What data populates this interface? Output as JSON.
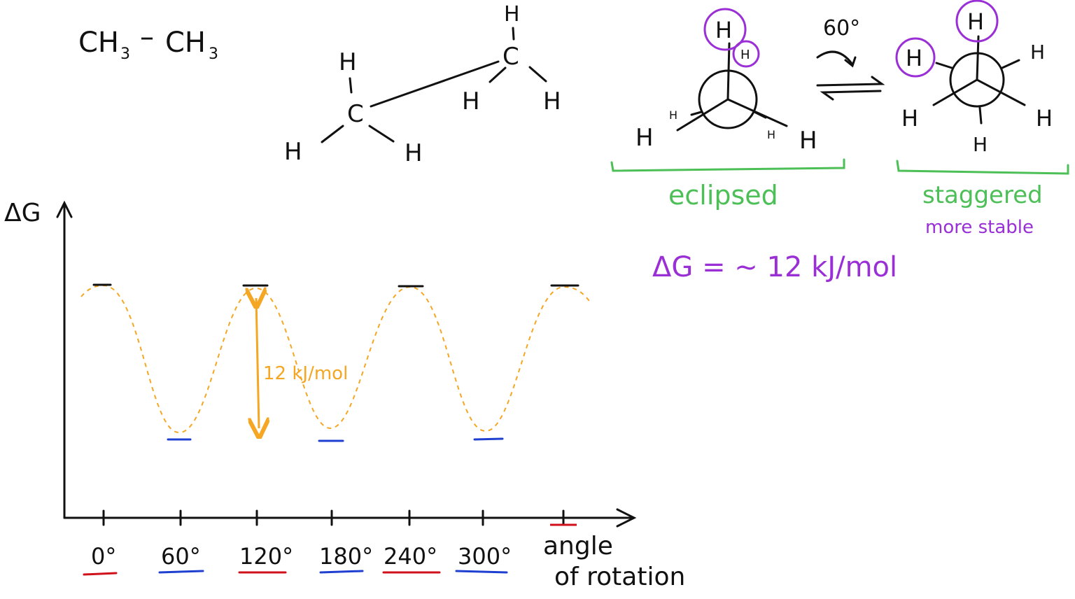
{
  "formula": {
    "left": "CH",
    "left_sub": "3",
    "dash": "–",
    "right": "CH",
    "right_sub": "3"
  },
  "sawhorse": {
    "carbon_left": "C",
    "carbon_right": "C",
    "h_top": "H",
    "h_left_up": "H",
    "h_left_down_left": "H",
    "h_left_down_right": "H",
    "h_right_low_left": "H",
    "h_right_low_right": "H"
  },
  "newman": {
    "rotation_label": "60°",
    "eclipsed": {
      "front_top": "H",
      "back_top": "H",
      "left_front": "H",
      "left_back": "H",
      "right_front": "H",
      "right_back": "H",
      "label": "eclipsed"
    },
    "staggered": {
      "top": "H",
      "left_upper": "H",
      "right_upper": "H",
      "left_lower": "H",
      "right_lower": "H",
      "bottom": "H",
      "label": "staggered",
      "note": "more stable"
    },
    "energy_note": "ΔG = ~ 12 kJ/mol"
  },
  "plot": {
    "y_axis_label": "ΔG",
    "x_axis_label_line1": "angle",
    "x_axis_label_line2": "of rotation",
    "tick_labels": [
      "0°",
      "60°",
      "120°",
      "180°",
      "240°",
      "300°"
    ],
    "barrier_label": "12 kJ/mol",
    "colors": {
      "curve": "#f5a623",
      "eclipsed_marker": "#111111",
      "staggered_marker": "#1f3fd1",
      "red_underline": "#d0101a",
      "blue_underline": "#1f3fd1",
      "green": "#4cbf57",
      "purple": "#9a2fd6"
    }
  }
}
